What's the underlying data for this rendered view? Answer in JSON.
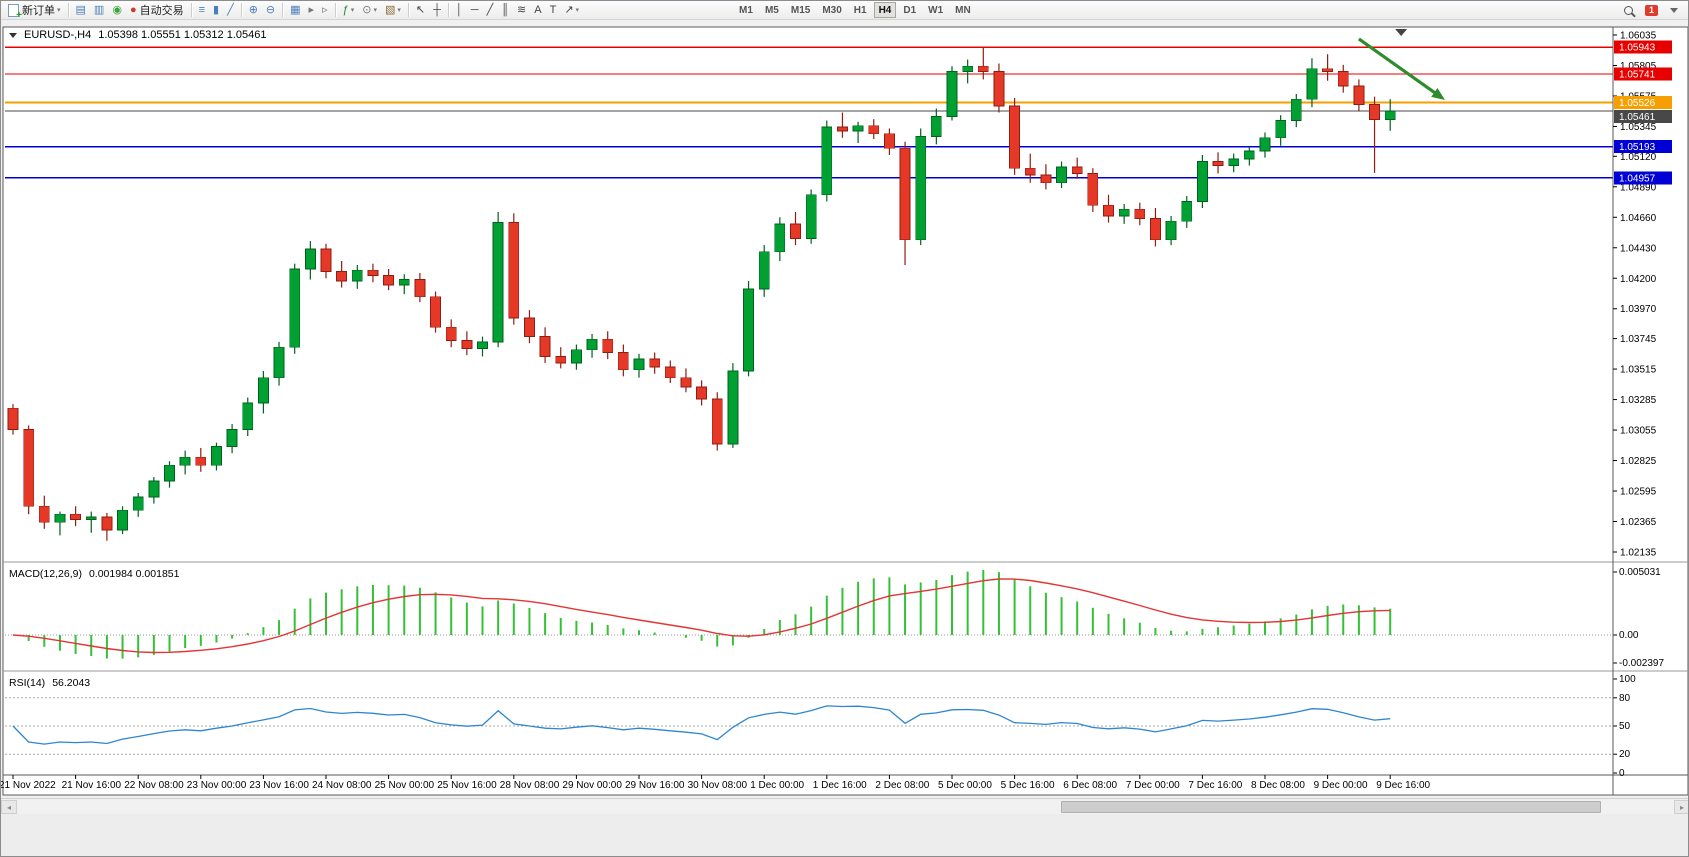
{
  "toolbar": {
    "buttons": [
      {
        "name": "new-order-button",
        "label": "新订单",
        "icon": "neworder",
        "dropdown": true
      },
      {
        "sep": true
      },
      {
        "name": "chart-window-icon",
        "glyph": "▤",
        "c": "#4a7ebb"
      },
      {
        "name": "profiles-icon",
        "glyph": "▥",
        "c": "#4a7ebb"
      },
      {
        "name": "alerts-icon",
        "glyph": "◉",
        "c": "#3aa53a"
      },
      {
        "name": "autotrading-button",
        "label": "自动交易",
        "glyph": "●",
        "c": "#cc3a2a"
      },
      {
        "sep": true
      },
      {
        "name": "bar-chart-icon",
        "glyph": "≡",
        "c": "#4a7ebb"
      },
      {
        "name": "candlestick-chart-icon",
        "glyph": "▮",
        "c": "#4a7ebb"
      },
      {
        "name": "line-chart-icon",
        "glyph": "╱",
        "c": "#4a7ebb"
      },
      {
        "sep": true
      },
      {
        "name": "zoom-in-icon",
        "glyph": "⊕",
        "c": "#4a7ebb"
      },
      {
        "name": "zoom-out-icon",
        "glyph": "⊖",
        "c": "#4a7ebb"
      },
      {
        "sep": true
      },
      {
        "name": "tile-windows-icon",
        "glyph": "▦",
        "c": "#4a7ebb"
      },
      {
        "name": "auto-scroll-icon",
        "glyph": "▸",
        "c": "#777"
      },
      {
        "name": "chart-shift-icon",
        "glyph": "▹",
        "c": "#777"
      },
      {
        "sep": true
      },
      {
        "name": "indicators-icon",
        "glyph": "ƒ",
        "c": "#2e7d32",
        "dropdown": true
      },
      {
        "name": "periods-icon",
        "glyph": "⊙",
        "c": "#777",
        "dropdown": true
      },
      {
        "name": "templates-icon",
        "glyph": "▧",
        "c": "#8a6d3b",
        "dropdown": true
      },
      {
        "sep": true
      },
      {
        "name": "cursor-icon",
        "glyph": "↖",
        "c": "#444"
      },
      {
        "name": "crosshair-icon",
        "glyph": "┼",
        "c": "#444"
      },
      {
        "sep": true
      },
      {
        "name": "vertical-line-icon",
        "glyph": "│",
        "c": "#444"
      },
      {
        "name": "horizontal-line-icon",
        "glyph": "─",
        "c": "#444"
      },
      {
        "name": "trendline-icon",
        "glyph": "╱",
        "c": "#444"
      },
      {
        "name": "equidistant-channel-icon",
        "glyph": "║",
        "c": "#444"
      },
      {
        "name": "fibonacci-icon",
        "glyph": "≋",
        "c": "#444"
      },
      {
        "name": "text-icon",
        "glyph": "A",
        "c": "#444"
      },
      {
        "name": "text-label-icon",
        "glyph": "T",
        "c": "#444"
      },
      {
        "name": "arrows-icon",
        "glyph": "↗",
        "c": "#444",
        "dropdown": true
      }
    ],
    "timeframes": [
      "M1",
      "M5",
      "M15",
      "M30",
      "H1",
      "H4",
      "D1",
      "W1",
      "MN"
    ],
    "active_timeframe": "H4",
    "notification_count": "1"
  },
  "chart_data": {
    "type": "candlestick",
    "symbol_label": "EURUSD-,H4",
    "ohlc_label": "1.05398 1.05551 1.05312 1.05461",
    "current_ohlc": {
      "open": 1.05398,
      "high": 1.05551,
      "low": 1.05312,
      "close": 1.05461
    },
    "price_axis": [
      "1.06035",
      "1.05805",
      "1.05575",
      "1.05345",
      "1.05120",
      "1.04890",
      "1.04660",
      "1.04430",
      "1.04200",
      "1.03970",
      "1.03745",
      "1.03515",
      "1.03285",
      "1.03055",
      "1.02825",
      "1.02595",
      "1.02365",
      "1.02135"
    ],
    "time_axis": [
      "21 Nov 2022",
      "21 Nov 16:00",
      "22 Nov 08:00",
      "23 Nov 00:00",
      "23 Nov 16:00",
      "24 Nov 08:00",
      "25 Nov 00:00",
      "25 Nov 16:00",
      "28 Nov 08:00",
      "29 Nov 00:00",
      "29 Nov 16:00",
      "30 Nov 08:00",
      "1 Dec 00:00",
      "1 Dec 16:00",
      "2 Dec 08:00",
      "5 Dec 00:00",
      "5 Dec 16:00",
      "6 Dec 08:00",
      "7 Dec 00:00",
      "7 Dec 16:00",
      "8 Dec 08:00",
      "9 Dec 00:00",
      "9 Dec 16:00"
    ],
    "bars_per_time_tick": 4,
    "candles": [
      [
        1.0322,
        1.0325,
        1.0302,
        1.0306
      ],
      [
        1.0306,
        1.0309,
        1.0242,
        1.0248
      ],
      [
        1.0248,
        1.0256,
        1.0231,
        1.0236
      ],
      [
        1.0236,
        1.0244,
        1.0226,
        1.0242
      ],
      [
        1.0242,
        1.0248,
        1.0233,
        1.0238
      ],
      [
        1.0238,
        1.0244,
        1.0228,
        1.024
      ],
      [
        1.024,
        1.0243,
        1.0222,
        1.023
      ],
      [
        1.023,
        1.0248,
        1.0227,
        1.0245
      ],
      [
        1.0245,
        1.0258,
        1.024,
        1.0255
      ],
      [
        1.0255,
        1.027,
        1.025,
        1.0267
      ],
      [
        1.0267,
        1.0282,
        1.0262,
        1.0279
      ],
      [
        1.0279,
        1.029,
        1.0272,
        1.0285
      ],
      [
        1.0285,
        1.0292,
        1.0274,
        1.0279
      ],
      [
        1.0279,
        1.0296,
        1.0275,
        1.0293
      ],
      [
        1.0293,
        1.031,
        1.0288,
        1.0306
      ],
      [
        1.0306,
        1.033,
        1.0301,
        1.0326
      ],
      [
        1.0326,
        1.035,
        1.0318,
        1.0345
      ],
      [
        1.0345,
        1.0372,
        1.0339,
        1.0368
      ],
      [
        1.0368,
        1.0431,
        1.0363,
        1.0427
      ],
      [
        1.0427,
        1.0448,
        1.0419,
        1.0442
      ],
      [
        1.0442,
        1.0446,
        1.042,
        1.0425
      ],
      [
        1.0425,
        1.0433,
        1.0413,
        1.0418
      ],
      [
        1.0418,
        1.043,
        1.0412,
        1.0426
      ],
      [
        1.0426,
        1.0431,
        1.0417,
        1.0422
      ],
      [
        1.0422,
        1.0427,
        1.0411,
        1.0415
      ],
      [
        1.0415,
        1.0423,
        1.0408,
        1.0419
      ],
      [
        1.0419,
        1.0424,
        1.0402,
        1.0406
      ],
      [
        1.0406,
        1.041,
        1.0379,
        1.0383
      ],
      [
        1.0383,
        1.0389,
        1.0368,
        1.0373
      ],
      [
        1.0373,
        1.038,
        1.0362,
        1.0367
      ],
      [
        1.0367,
        1.0376,
        1.0361,
        1.0372
      ],
      [
        1.0372,
        1.047,
        1.0368,
        1.0462
      ],
      [
        1.0462,
        1.0469,
        1.0385,
        1.039
      ],
      [
        1.039,
        1.0396,
        1.0371,
        1.0376
      ],
      [
        1.0376,
        1.0383,
        1.0356,
        1.0361
      ],
      [
        1.0361,
        1.0368,
        1.0352,
        1.0356
      ],
      [
        1.0356,
        1.037,
        1.0351,
        1.0366
      ],
      [
        1.0366,
        1.0378,
        1.036,
        1.0374
      ],
      [
        1.0374,
        1.038,
        1.0359,
        1.0364
      ],
      [
        1.0364,
        1.037,
        1.0346,
        1.0351
      ],
      [
        1.0351,
        1.0363,
        1.0345,
        1.0359
      ],
      [
        1.0359,
        1.0364,
        1.0348,
        1.0353
      ],
      [
        1.0353,
        1.0358,
        1.0341,
        1.0345
      ],
      [
        1.0345,
        1.0352,
        1.0334,
        1.0338
      ],
      [
        1.0338,
        1.0343,
        1.0324,
        1.0329
      ],
      [
        1.0329,
        1.0334,
        1.029,
        1.0295
      ],
      [
        1.0295,
        1.0356,
        1.0292,
        1.035
      ],
      [
        1.035,
        1.0418,
        1.0346,
        1.0412
      ],
      [
        1.0412,
        1.0445,
        1.0406,
        1.044
      ],
      [
        1.044,
        1.0466,
        1.0433,
        1.0461
      ],
      [
        1.0461,
        1.047,
        1.0445,
        1.045
      ],
      [
        1.045,
        1.0487,
        1.0446,
        1.0483
      ],
      [
        1.0483,
        1.0539,
        1.0478,
        1.0534
      ],
      [
        1.0534,
        1.0545,
        1.0526,
        1.0531
      ],
      [
        1.0531,
        1.0538,
        1.0522,
        1.0535
      ],
      [
        1.0535,
        1.054,
        1.0525,
        1.0529
      ],
      [
        1.0529,
        1.0533,
        1.0513,
        1.0518
      ],
      [
        1.0518,
        1.0523,
        1.043,
        1.0449
      ],
      [
        1.0449,
        1.0533,
        1.0445,
        1.0527
      ],
      [
        1.0527,
        1.0548,
        1.0521,
        1.0542
      ],
      [
        1.0542,
        1.058,
        1.0539,
        1.0576
      ],
      [
        1.0576,
        1.0585,
        1.0567,
        1.058
      ],
      [
        1.058,
        1.05943,
        1.057,
        1.0576
      ],
      [
        1.0576,
        1.0582,
        1.0545,
        1.055
      ],
      [
        1.055,
        1.0556,
        1.0498,
        1.0503
      ],
      [
        1.0503,
        1.0514,
        1.0492,
        1.0498
      ],
      [
        1.0498,
        1.0506,
        1.0487,
        1.0492
      ],
      [
        1.0492,
        1.0508,
        1.0488,
        1.0504
      ],
      [
        1.0504,
        1.0511,
        1.0495,
        1.0499
      ],
      [
        1.0499,
        1.0503,
        1.047,
        1.0475
      ],
      [
        1.0475,
        1.0483,
        1.0462,
        1.0467
      ],
      [
        1.0467,
        1.0476,
        1.0461,
        1.0472
      ],
      [
        1.0472,
        1.0477,
        1.046,
        1.0465
      ],
      [
        1.0465,
        1.0473,
        1.0444,
        1.0449
      ],
      [
        1.0449,
        1.0467,
        1.0445,
        1.0463
      ],
      [
        1.0463,
        1.0482,
        1.0458,
        1.0478
      ],
      [
        1.0478,
        1.0513,
        1.0473,
        1.0508
      ],
      [
        1.0508,
        1.0515,
        1.0499,
        1.0505
      ],
      [
        1.0505,
        1.0514,
        1.05,
        1.051
      ],
      [
        1.051,
        1.0519,
        1.0505,
        1.0516
      ],
      [
        1.0516,
        1.053,
        1.0511,
        1.0526
      ],
      [
        1.0526,
        1.0543,
        1.052,
        1.0539
      ],
      [
        1.0539,
        1.0559,
        1.0534,
        1.0555
      ],
      [
        1.0555,
        1.0586,
        1.0549,
        1.0578
      ],
      [
        1.0578,
        1.0589,
        1.0569,
        1.0576
      ],
      [
        1.0576,
        1.0581,
        1.056,
        1.0565
      ],
      [
        1.0565,
        1.057,
        1.0546,
        1.0551
      ],
      [
        1.0551,
        1.0557,
        1.04995,
        1.05398
      ],
      [
        1.05398,
        1.05551,
        1.05312,
        1.05461
      ]
    ],
    "levels": [
      {
        "name": "resistance-line-1",
        "price": 1.05943,
        "label": "1.05943",
        "color": "#e60000",
        "width": 1.3
      },
      {
        "name": "resistance-line-2",
        "price": 1.05741,
        "label": "1.05741",
        "color": "#e60000",
        "width": 1.3
      },
      {
        "name": "orange-level-line",
        "price": 1.05526,
        "label": "1.05526",
        "color": "#f5a000",
        "width": 2
      },
      {
        "name": "bid-price-line",
        "price": 1.05461,
        "label": "1.05461",
        "color": "#484848",
        "width": 1.3
      },
      {
        "name": "support-line-1",
        "price": 1.05193,
        "label": "1.05193",
        "color": "#0000d6",
        "width": 1.6
      },
      {
        "name": "support-line-2",
        "price": 1.04957,
        "label": "1.04957",
        "color": "#0000d6",
        "width": 1.6
      }
    ],
    "macd": {
      "name": "MACD(12,26,9)",
      "values_text": "0.001984 0.001851",
      "fast": 12,
      "slow": 26,
      "signal_period": 9,
      "axis_labels": [
        "0.005031",
        "0.00",
        "-0.002397"
      ]
    },
    "rsi": {
      "name": "RSI(14)",
      "value_text": "56.2043",
      "period": 14,
      "levels": [
        80,
        50,
        20
      ],
      "axis_labels": [
        "100",
        "80",
        "50",
        "20",
        "0"
      ]
    },
    "arrow": {
      "from_bar": 86,
      "from_price": 1.06005,
      "to_bar": 91.5,
      "to_price": 1.05545,
      "color": "#2e8b2e"
    },
    "shift_marker_bar": 88.7,
    "colors": {
      "bull": "#00a032",
      "bull_dark": "#00611e",
      "bear": "#e53826",
      "bear_dark": "#8f1d12",
      "macd_hist": "#35c135",
      "macd_signal": "#e33535",
      "rsi": "#2e86d0"
    }
  }
}
